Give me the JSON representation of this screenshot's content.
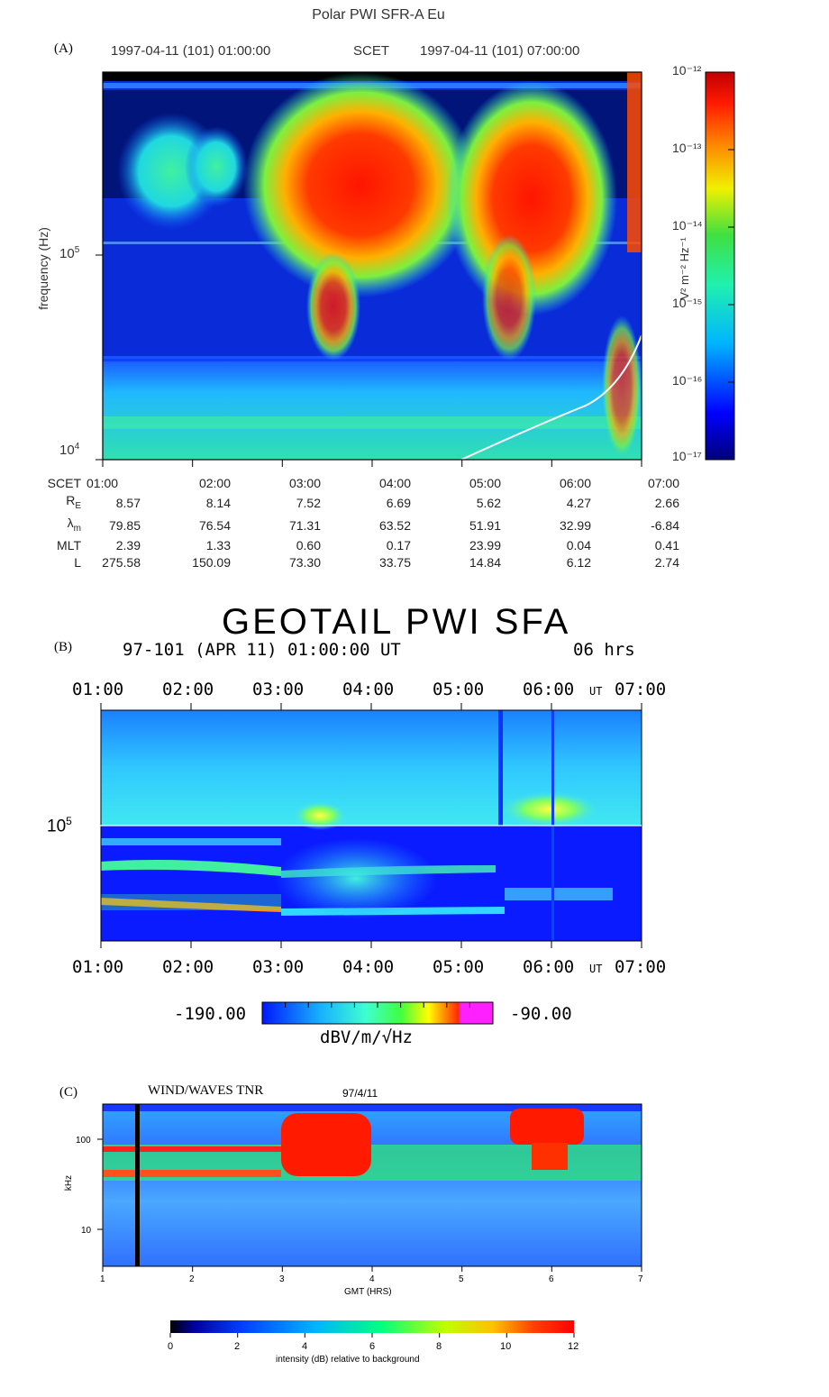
{
  "panel_a": {
    "title": "Polar PWI SFR-A Eu",
    "tag": "(A)",
    "header_left": "1997-04-11 (101) 01:00:00",
    "header_mid": "SCET",
    "header_right": "1997-04-11 (101) 07:00:00",
    "ylabel": "frequency (Hz)",
    "colorbar_label": "V² m⁻² Hz⁻¹",
    "colorbar_ticks": [
      "10⁻¹²",
      "10⁻¹³",
      "10⁻¹⁴",
      "10⁻¹⁵",
      "10⁻¹⁶",
      "10⁻¹⁷"
    ],
    "ephemeris": [
      {
        "label": "SCET",
        "values": [
          "01:00",
          "02:00",
          "03:00",
          "04:00",
          "05:00",
          "06:00",
          "07:00"
        ]
      },
      {
        "label": "RE",
        "values": [
          "8.57",
          "8.14",
          "7.52",
          "6.69",
          "5.62",
          "4.27",
          "2.66"
        ]
      },
      {
        "label": "λm",
        "values": [
          "79.85",
          "76.54",
          "71.31",
          "63.52",
          "51.91",
          "32.99",
          "-6.84"
        ]
      },
      {
        "label": "MLT",
        "values": [
          "2.39",
          "1.33",
          "0.60",
          "0.17",
          "23.99",
          "0.04",
          "0.41"
        ]
      },
      {
        "label": "L",
        "values": [
          "275.58",
          "150.09",
          "73.30",
          "33.75",
          "14.84",
          "6.12",
          "2.74"
        ]
      }
    ]
  },
  "panel_b": {
    "title": "GEOTAIL PWI SFA",
    "tag": "(B)",
    "subtitle_left": "97-101 (APR 11) 01:00:00 UT",
    "subtitle_right": "06 hrs",
    "time_labels": [
      "01:00",
      "02:00",
      "03:00",
      "04:00",
      "05:00",
      "06:00",
      "07:00"
    ],
    "ut_label": "UT",
    "ytick_label": "10⁵",
    "colorbar_min": "-190.00",
    "colorbar_max": "-90.00",
    "colorbar_unit": "dBV/m/√Hz"
  },
  "panel_c": {
    "title": "WIND/WAVES TNR",
    "date": "97/4/11",
    "tag": "(C)",
    "xlabel": "GMT (HRS)",
    "ylabel": "kHz",
    "colorbar_label": "intensity (dB) relative to background"
  },
  "chart_data": [
    {
      "type": "heatmap",
      "title": "Polar PWI SFR-A Eu",
      "xlabel": "SCET",
      "ylabel": "frequency (Hz)",
      "x": [
        "01:00",
        "02:00",
        "03:00",
        "04:00",
        "05:00",
        "06:00",
        "07:00"
      ],
      "xlim": [
        "01:00",
        "07:10"
      ],
      "yscale": "log",
      "ylim": [
        10000,
        800000
      ],
      "yticks": [
        10000,
        100000
      ],
      "colorbar": {
        "scale": "log",
        "range": [
          1e-17,
          1e-12
        ],
        "ticks": [
          1e-12,
          1e-13,
          1e-14,
          1e-15,
          1e-16,
          1e-17
        ],
        "label": "V² m⁻² Hz⁻¹"
      },
      "colors": [
        "#00007a",
        "#0a2cff",
        "#23d4ff",
        "#2cf08c",
        "#ffe600",
        "#ff2d00",
        "#b80000"
      ],
      "overlay_line": {
        "x_hours": [
          5.0,
          5.5,
          6.0,
          6.4,
          6.8,
          7.0
        ],
        "y_hz": [
          10000,
          12500,
          15500,
          18500,
          27000,
          40000
        ],
        "color": "#ffffff"
      }
    },
    {
      "type": "heatmap",
      "title": "GEOTAIL PWI SFA",
      "x": [
        "01:00",
        "02:00",
        "03:00",
        "04:00",
        "05:00",
        "06:00",
        "07:00"
      ],
      "xlabel": "UT",
      "yscale": "log",
      "yticks": [
        100000
      ],
      "colorbar": {
        "scale": "linear",
        "range": [
          -190,
          -90
        ],
        "label": "dBV/m/√Hz"
      },
      "colors": [
        "#0018ff",
        "#17a7ff",
        "#3fffd9",
        "#3fff3f",
        "#ffff00",
        "#ff2a00",
        "#ff1aff"
      ]
    },
    {
      "type": "heatmap",
      "title": "WIND/WAVES TNR",
      "xlabel": "GMT (HRS)",
      "ylabel": "kHz",
      "x": [
        1,
        2,
        3,
        4,
        5,
        6,
        7
      ],
      "yscale": "log",
      "yticks": [
        10,
        100
      ],
      "colorbar": {
        "scale": "linear",
        "range": [
          0,
          12
        ],
        "ticks": [
          0,
          2,
          4,
          6,
          8,
          10,
          12
        ],
        "label": "intensity (dB) relative to background"
      },
      "colors": [
        "#000000",
        "#0000ff",
        "#00a0ff",
        "#00ff7a",
        "#c8ff00",
        "#ffa800",
        "#ff0000"
      ]
    }
  ]
}
